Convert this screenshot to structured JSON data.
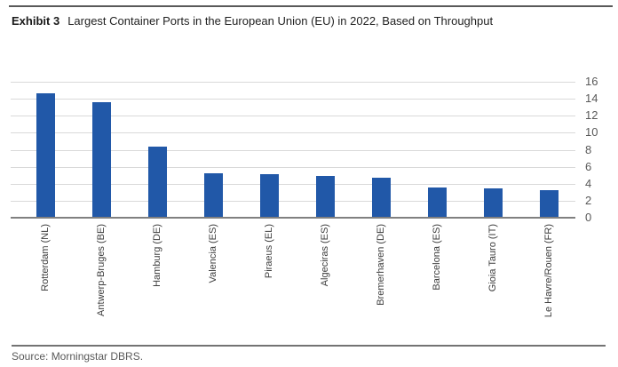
{
  "header": {
    "exhibit_label": "Exhibit 3",
    "title": "Largest Container Ports in the European Union (EU) in 2022, Based on Throughput"
  },
  "footer": {
    "source": "Source: Morningstar DBRS."
  },
  "colors": {
    "bar": "#2158A8",
    "gridline": "#D9D9D9",
    "axis_line": "#808080",
    "top_rule": "#595959",
    "bottom_rule": "#737373",
    "tick_text": "#595959",
    "category_text": "#3D3D3D"
  },
  "chart_data": {
    "type": "bar",
    "title": "Largest Container Ports in the European Union (EU) in 2022, Based on Throughput",
    "categories": [
      "Rotterdam (NL)",
      "Antwerp-Bruges (BE)",
      "Hamburg (DE)",
      "Valencia (ES)",
      "Piraeus (EL)",
      "Algeciras (ES)",
      "Bremerhaven (DE)",
      "Barcelona (ES)",
      "Gioia Tauro (IT)",
      "Le Havre/Rouen (FR)"
    ],
    "values": [
      14.5,
      13.5,
      8.3,
      5.1,
      5.0,
      4.8,
      4.6,
      3.5,
      3.4,
      3.1
    ],
    "xlabel": "",
    "ylabel": "",
    "ylim": [
      0,
      16
    ],
    "yticks": [
      0,
      2,
      4,
      6,
      8,
      10,
      12,
      14,
      16
    ],
    "y_axis_side": "right",
    "grid": true,
    "legend": false
  }
}
